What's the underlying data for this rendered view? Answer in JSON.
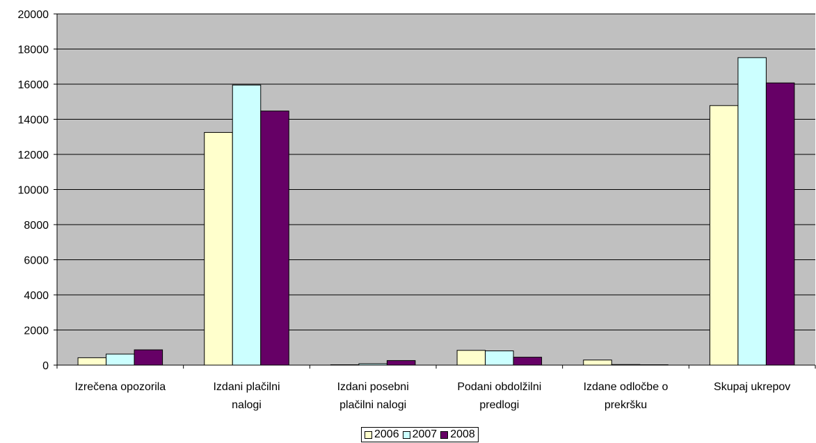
{
  "chart_data": {
    "type": "bar",
    "categories": [
      [
        "Izrečena opozorila"
      ],
      [
        "Izdani plačilni",
        "nalogi"
      ],
      [
        "Izdani posebni",
        "plačilni nalogi"
      ],
      [
        "Podani obdolžilni",
        "predlogi"
      ],
      [
        "Izdane odločbe o",
        "prekršku"
      ],
      [
        "Skupaj ukrepov"
      ]
    ],
    "series": [
      {
        "name": "2006",
        "color": "#ffffcc",
        "values": [
          420,
          13250,
          20,
          840,
          290,
          14780
        ]
      },
      {
        "name": "2007",
        "color": "#ccffff",
        "values": [
          630,
          15950,
          80,
          810,
          30,
          17510
        ]
      },
      {
        "name": "2008",
        "color": "#660066",
        "values": [
          870,
          14470,
          260,
          450,
          20,
          16070
        ]
      }
    ],
    "ylim": [
      0,
      20000
    ],
    "yticks": [
      "0",
      "2000",
      "4000",
      "6000",
      "8000",
      "10000",
      "12000",
      "14000",
      "16000",
      "18000",
      "20000"
    ],
    "grid": true,
    "plot_background": "#c0c0c0",
    "legend_position": "bottom"
  }
}
